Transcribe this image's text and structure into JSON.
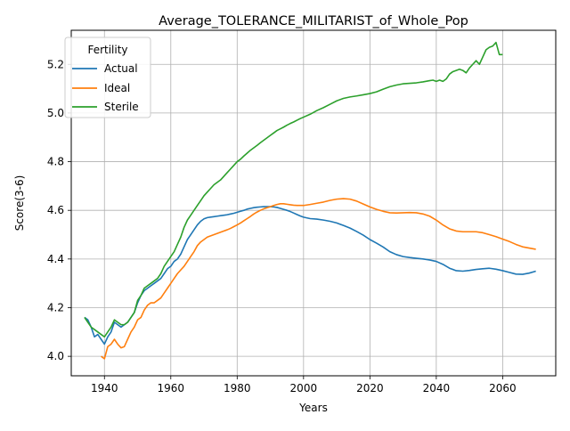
{
  "chart_data": {
    "type": "line",
    "title": "Average_TOLERANCE_MILITARIST_of_Whole_Pop",
    "xlabel": "Years",
    "ylabel": "Score(3-6)",
    "xlim": [
      1930,
      2076
    ],
    "ylim": [
      3.92,
      5.34
    ],
    "xticks": [
      1940,
      1960,
      1980,
      2000,
      2020,
      2040,
      2060
    ],
    "yticks": [
      4.0,
      4.2,
      4.4,
      4.6,
      4.8,
      5.0,
      5.2
    ],
    "grid": true,
    "legend": {
      "title": "Fertility",
      "placement": "upper-left"
    },
    "series": [
      {
        "name": "Actual",
        "color": "#1f77b4",
        "points": [
          [
            1934,
            4.16
          ],
          [
            1935,
            4.15
          ],
          [
            1936,
            4.12
          ],
          [
            1937,
            4.08
          ],
          [
            1938,
            4.09
          ],
          [
            1939,
            4.07
          ],
          [
            1940,
            4.05
          ],
          [
            1941,
            4.08
          ],
          [
            1942,
            4.1
          ],
          [
            1943,
            4.14
          ],
          [
            1944,
            4.13
          ],
          [
            1945,
            4.12
          ],
          [
            1946,
            4.13
          ],
          [
            1947,
            4.14
          ],
          [
            1948,
            4.16
          ],
          [
            1949,
            4.18
          ],
          [
            1950,
            4.22
          ],
          [
            1951,
            4.25
          ],
          [
            1952,
            4.27
          ],
          [
            1953,
            4.28
          ],
          [
            1954,
            4.29
          ],
          [
            1955,
            4.3
          ],
          [
            1956,
            4.31
          ],
          [
            1957,
            4.32
          ],
          [
            1958,
            4.34
          ],
          [
            1959,
            4.36
          ],
          [
            1960,
            4.37
          ],
          [
            1961,
            4.39
          ],
          [
            1962,
            4.4
          ],
          [
            1963,
            4.42
          ],
          [
            1964,
            4.45
          ],
          [
            1965,
            4.48
          ],
          [
            1966,
            4.5
          ],
          [
            1967,
            4.52
          ],
          [
            1968,
            4.54
          ],
          [
            1969,
            4.555
          ],
          [
            1970,
            4.565
          ],
          [
            1971,
            4.57
          ],
          [
            1972,
            4.572
          ],
          [
            1973,
            4.574
          ],
          [
            1974,
            4.576
          ],
          [
            1975,
            4.578
          ],
          [
            1976,
            4.58
          ],
          [
            1977,
            4.582
          ],
          [
            1978,
            4.585
          ],
          [
            1979,
            4.588
          ],
          [
            1980,
            4.592
          ],
          [
            1981,
            4.596
          ],
          [
            1982,
            4.6
          ],
          [
            1983,
            4.605
          ],
          [
            1984,
            4.608
          ],
          [
            1985,
            4.611
          ],
          [
            1986,
            4.613
          ],
          [
            1987,
            4.614
          ],
          [
            1988,
            4.615
          ],
          [
            1989,
            4.615
          ],
          [
            1990,
            4.615
          ],
          [
            1991,
            4.614
          ],
          [
            1992,
            4.612
          ],
          [
            1993,
            4.608
          ],
          [
            1994,
            4.604
          ],
          [
            1995,
            4.6
          ],
          [
            1996,
            4.595
          ],
          [
            1997,
            4.589
          ],
          [
            1998,
            4.583
          ],
          [
            1999,
            4.577
          ],
          [
            2000,
            4.572
          ],
          [
            2002,
            4.566
          ],
          [
            2004,
            4.564
          ],
          [
            2006,
            4.56
          ],
          [
            2008,
            4.555
          ],
          [
            2010,
            4.548
          ],
          [
            2012,
            4.538
          ],
          [
            2014,
            4.527
          ],
          [
            2016,
            4.513
          ],
          [
            2018,
            4.498
          ],
          [
            2020,
            4.48
          ],
          [
            2022,
            4.465
          ],
          [
            2024,
            4.449
          ],
          [
            2026,
            4.43
          ],
          [
            2028,
            4.418
          ],
          [
            2030,
            4.41
          ],
          [
            2032,
            4.406
          ],
          [
            2034,
            4.403
          ],
          [
            2036,
            4.4
          ],
          [
            2038,
            4.396
          ],
          [
            2040,
            4.39
          ],
          [
            2042,
            4.378
          ],
          [
            2044,
            4.362
          ],
          [
            2046,
            4.352
          ],
          [
            2048,
            4.35
          ],
          [
            2050,
            4.353
          ],
          [
            2052,
            4.357
          ],
          [
            2054,
            4.36
          ],
          [
            2056,
            4.362
          ],
          [
            2058,
            4.358
          ],
          [
            2060,
            4.352
          ],
          [
            2062,
            4.345
          ],
          [
            2064,
            4.338
          ],
          [
            2066,
            4.337
          ],
          [
            2068,
            4.342
          ],
          [
            2070,
            4.35
          ]
        ]
      },
      {
        "name": "Ideal",
        "color": "#ff7f0e",
        "points": [
          [
            1939,
            4.0
          ],
          [
            1940,
            3.99
          ],
          [
            1941,
            4.04
          ],
          [
            1942,
            4.05
          ],
          [
            1943,
            4.07
          ],
          [
            1944,
            4.05
          ],
          [
            1945,
            4.035
          ],
          [
            1946,
            4.04
          ],
          [
            1947,
            4.07
          ],
          [
            1948,
            4.1
          ],
          [
            1949,
            4.12
          ],
          [
            1950,
            4.15
          ],
          [
            1951,
            4.16
          ],
          [
            1952,
            4.19
          ],
          [
            1953,
            4.21
          ],
          [
            1954,
            4.22
          ],
          [
            1955,
            4.22
          ],
          [
            1956,
            4.23
          ],
          [
            1957,
            4.24
          ],
          [
            1958,
            4.26
          ],
          [
            1959,
            4.28
          ],
          [
            1960,
            4.3
          ],
          [
            1961,
            4.32
          ],
          [
            1962,
            4.34
          ],
          [
            1963,
            4.355
          ],
          [
            1964,
            4.37
          ],
          [
            1965,
            4.39
          ],
          [
            1966,
            4.41
          ],
          [
            1967,
            4.43
          ],
          [
            1968,
            4.455
          ],
          [
            1969,
            4.47
          ],
          [
            1970,
            4.48
          ],
          [
            1971,
            4.49
          ],
          [
            1972,
            4.495
          ],
          [
            1973,
            4.5
          ],
          [
            1974,
            4.505
          ],
          [
            1975,
            4.51
          ],
          [
            1976,
            4.515
          ],
          [
            1977,
            4.52
          ],
          [
            1978,
            4.526
          ],
          [
            1979,
            4.533
          ],
          [
            1980,
            4.54
          ],
          [
            1981,
            4.548
          ],
          [
            1982,
            4.557
          ],
          [
            1983,
            4.566
          ],
          [
            1984,
            4.575
          ],
          [
            1985,
            4.585
          ],
          [
            1986,
            4.593
          ],
          [
            1987,
            4.6
          ],
          [
            1988,
            4.606
          ],
          [
            1989,
            4.611
          ],
          [
            1990,
            4.615
          ],
          [
            1991,
            4.62
          ],
          [
            1992,
            4.624
          ],
          [
            1993,
            4.627
          ],
          [
            1994,
            4.627
          ],
          [
            1995,
            4.625
          ],
          [
            1996,
            4.623
          ],
          [
            1997,
            4.621
          ],
          [
            1998,
            4.62
          ],
          [
            1999,
            4.62
          ],
          [
            2000,
            4.62
          ],
          [
            2002,
            4.624
          ],
          [
            2004,
            4.629
          ],
          [
            2006,
            4.634
          ],
          [
            2008,
            4.641
          ],
          [
            2010,
            4.646
          ],
          [
            2012,
            4.648
          ],
          [
            2014,
            4.646
          ],
          [
            2016,
            4.638
          ],
          [
            2018,
            4.626
          ],
          [
            2020,
            4.614
          ],
          [
            2022,
            4.604
          ],
          [
            2024,
            4.596
          ],
          [
            2026,
            4.59
          ],
          [
            2028,
            4.589
          ],
          [
            2030,
            4.59
          ],
          [
            2032,
            4.591
          ],
          [
            2034,
            4.59
          ],
          [
            2036,
            4.585
          ],
          [
            2038,
            4.576
          ],
          [
            2040,
            4.56
          ],
          [
            2042,
            4.54
          ],
          [
            2044,
            4.524
          ],
          [
            2046,
            4.515
          ],
          [
            2048,
            4.512
          ],
          [
            2050,
            4.512
          ],
          [
            2052,
            4.512
          ],
          [
            2054,
            4.508
          ],
          [
            2056,
            4.5
          ],
          [
            2058,
            4.492
          ],
          [
            2060,
            4.482
          ],
          [
            2062,
            4.472
          ],
          [
            2064,
            4.46
          ],
          [
            2066,
            4.45
          ],
          [
            2068,
            4.445
          ],
          [
            2070,
            4.44
          ]
        ]
      },
      {
        "name": "Sterile",
        "color": "#2ca02c",
        "points": [
          [
            1934,
            4.16
          ],
          [
            1935,
            4.14
          ],
          [
            1936,
            4.12
          ],
          [
            1937,
            4.11
          ],
          [
            1938,
            4.1
          ],
          [
            1939,
            4.09
          ],
          [
            1940,
            4.08
          ],
          [
            1941,
            4.1
          ],
          [
            1942,
            4.12
          ],
          [
            1943,
            4.15
          ],
          [
            1944,
            4.14
          ],
          [
            1945,
            4.13
          ],
          [
            1946,
            4.13
          ],
          [
            1947,
            4.14
          ],
          [
            1948,
            4.16
          ],
          [
            1949,
            4.18
          ],
          [
            1950,
            4.23
          ],
          [
            1951,
            4.25
          ],
          [
            1952,
            4.28
          ],
          [
            1953,
            4.29
          ],
          [
            1954,
            4.3
          ],
          [
            1955,
            4.31
          ],
          [
            1956,
            4.32
          ],
          [
            1957,
            4.34
          ],
          [
            1958,
            4.37
          ],
          [
            1959,
            4.39
          ],
          [
            1960,
            4.41
          ],
          [
            1961,
            4.43
          ],
          [
            1962,
            4.46
          ],
          [
            1963,
            4.49
          ],
          [
            1964,
            4.53
          ],
          [
            1965,
            4.56
          ],
          [
            1966,
            4.58
          ],
          [
            1967,
            4.6
          ],
          [
            1968,
            4.62
          ],
          [
            1969,
            4.64
          ],
          [
            1970,
            4.66
          ],
          [
            1971,
            4.675
          ],
          [
            1972,
            4.69
          ],
          [
            1973,
            4.705
          ],
          [
            1974,
            4.715
          ],
          [
            1975,
            4.725
          ],
          [
            1976,
            4.74
          ],
          [
            1977,
            4.755
          ],
          [
            1978,
            4.77
          ],
          [
            1979,
            4.785
          ],
          [
            1980,
            4.8
          ],
          [
            1981,
            4.81
          ],
          [
            1982,
            4.823
          ],
          [
            1983,
            4.835
          ],
          [
            1984,
            4.847
          ],
          [
            1985,
            4.857
          ],
          [
            1986,
            4.867
          ],
          [
            1987,
            4.878
          ],
          [
            1988,
            4.888
          ],
          [
            1989,
            4.898
          ],
          [
            1990,
            4.908
          ],
          [
            1991,
            4.918
          ],
          [
            1992,
            4.928
          ],
          [
            1993,
            4.935
          ],
          [
            1994,
            4.942
          ],
          [
            1995,
            4.95
          ],
          [
            1996,
            4.957
          ],
          [
            1997,
            4.963
          ],
          [
            1998,
            4.97
          ],
          [
            1999,
            4.977
          ],
          [
            2000,
            4.983
          ],
          [
            2002,
            4.995
          ],
          [
            2004,
            5.01
          ],
          [
            2006,
            5.022
          ],
          [
            2008,
            5.036
          ],
          [
            2010,
            5.05
          ],
          [
            2012,
            5.06
          ],
          [
            2014,
            5.066
          ],
          [
            2016,
            5.07
          ],
          [
            2018,
            5.075
          ],
          [
            2020,
            5.08
          ],
          [
            2022,
            5.087
          ],
          [
            2024,
            5.098
          ],
          [
            2026,
            5.108
          ],
          [
            2028,
            5.115
          ],
          [
            2030,
            5.12
          ],
          [
            2032,
            5.122
          ],
          [
            2034,
            5.124
          ],
          [
            2036,
            5.128
          ],
          [
            2038,
            5.133
          ],
          [
            2039,
            5.135
          ],
          [
            2040,
            5.13
          ],
          [
            2041,
            5.135
          ],
          [
            2042,
            5.13
          ],
          [
            2043,
            5.14
          ],
          [
            2044,
            5.16
          ],
          [
            2045,
            5.17
          ],
          [
            2046,
            5.175
          ],
          [
            2047,
            5.18
          ],
          [
            2048,
            5.175
          ],
          [
            2049,
            5.165
          ],
          [
            2050,
            5.185
          ],
          [
            2051,
            5.2
          ],
          [
            2052,
            5.215
          ],
          [
            2053,
            5.2
          ],
          [
            2054,
            5.23
          ],
          [
            2055,
            5.26
          ],
          [
            2056,
            5.27
          ],
          [
            2057,
            5.275
          ],
          [
            2058,
            5.29
          ],
          [
            2059,
            5.24
          ],
          [
            2060,
            5.24
          ]
        ]
      }
    ]
  }
}
